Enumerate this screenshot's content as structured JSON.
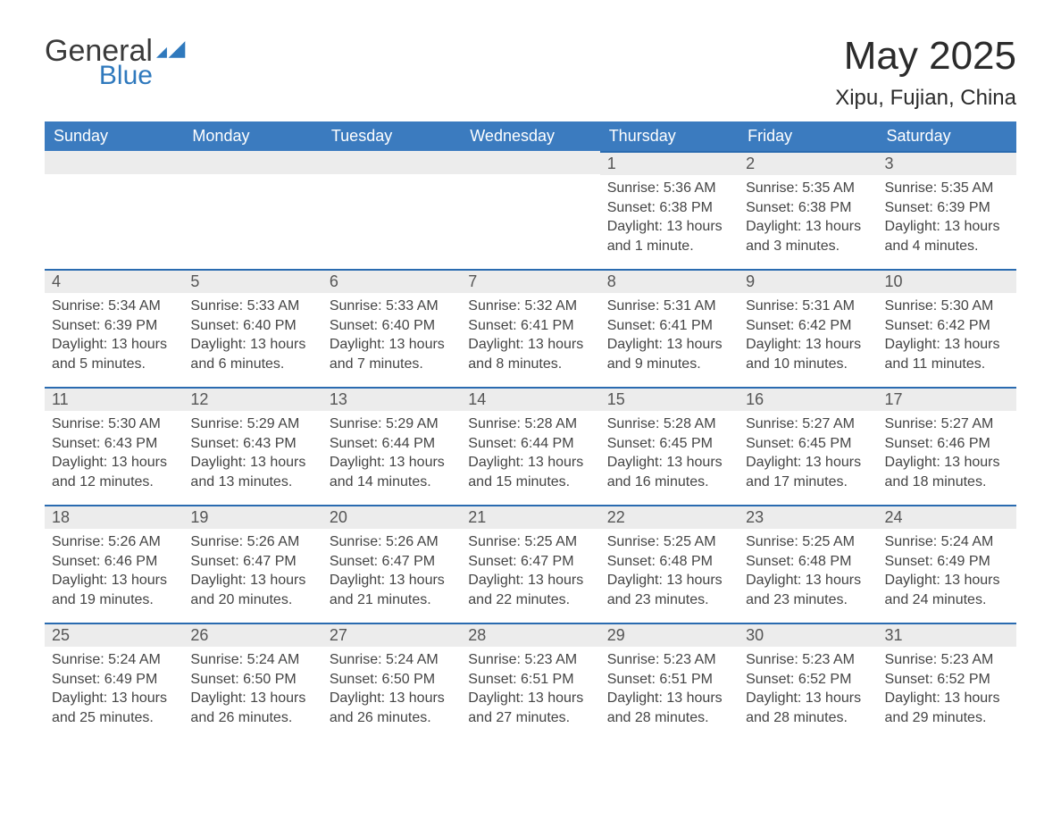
{
  "logo": {
    "word1": "General",
    "word2": "Blue"
  },
  "title": "May 2025",
  "location": "Xipu, Fujian, China",
  "colors": {
    "header_blue": "#3b7bbf",
    "accent_blue": "#2a6bb0",
    "logo_blue": "#2f79bd",
    "daynum_bg": "#ececec",
    "text": "#333333"
  },
  "columns": [
    "Sunday",
    "Monday",
    "Tuesday",
    "Wednesday",
    "Thursday",
    "Friday",
    "Saturday"
  ],
  "weeks": [
    [
      null,
      null,
      null,
      null,
      {
        "n": "1",
        "sunrise": "5:36 AM",
        "sunset": "6:38 PM",
        "daylight": "13 hours and 1 minute."
      },
      {
        "n": "2",
        "sunrise": "5:35 AM",
        "sunset": "6:38 PM",
        "daylight": "13 hours and 3 minutes."
      },
      {
        "n": "3",
        "sunrise": "5:35 AM",
        "sunset": "6:39 PM",
        "daylight": "13 hours and 4 minutes."
      }
    ],
    [
      {
        "n": "4",
        "sunrise": "5:34 AM",
        "sunset": "6:39 PM",
        "daylight": "13 hours and 5 minutes."
      },
      {
        "n": "5",
        "sunrise": "5:33 AM",
        "sunset": "6:40 PM",
        "daylight": "13 hours and 6 minutes."
      },
      {
        "n": "6",
        "sunrise": "5:33 AM",
        "sunset": "6:40 PM",
        "daylight": "13 hours and 7 minutes."
      },
      {
        "n": "7",
        "sunrise": "5:32 AM",
        "sunset": "6:41 PM",
        "daylight": "13 hours and 8 minutes."
      },
      {
        "n": "8",
        "sunrise": "5:31 AM",
        "sunset": "6:41 PM",
        "daylight": "13 hours and 9 minutes."
      },
      {
        "n": "9",
        "sunrise": "5:31 AM",
        "sunset": "6:42 PM",
        "daylight": "13 hours and 10 minutes."
      },
      {
        "n": "10",
        "sunrise": "5:30 AM",
        "sunset": "6:42 PM",
        "daylight": "13 hours and 11 minutes."
      }
    ],
    [
      {
        "n": "11",
        "sunrise": "5:30 AM",
        "sunset": "6:43 PM",
        "daylight": "13 hours and 12 minutes."
      },
      {
        "n": "12",
        "sunrise": "5:29 AM",
        "sunset": "6:43 PM",
        "daylight": "13 hours and 13 minutes."
      },
      {
        "n": "13",
        "sunrise": "5:29 AM",
        "sunset": "6:44 PM",
        "daylight": "13 hours and 14 minutes."
      },
      {
        "n": "14",
        "sunrise": "5:28 AM",
        "sunset": "6:44 PM",
        "daylight": "13 hours and 15 minutes."
      },
      {
        "n": "15",
        "sunrise": "5:28 AM",
        "sunset": "6:45 PM",
        "daylight": "13 hours and 16 minutes."
      },
      {
        "n": "16",
        "sunrise": "5:27 AM",
        "sunset": "6:45 PM",
        "daylight": "13 hours and 17 minutes."
      },
      {
        "n": "17",
        "sunrise": "5:27 AM",
        "sunset": "6:46 PM",
        "daylight": "13 hours and 18 minutes."
      }
    ],
    [
      {
        "n": "18",
        "sunrise": "5:26 AM",
        "sunset": "6:46 PM",
        "daylight": "13 hours and 19 minutes."
      },
      {
        "n": "19",
        "sunrise": "5:26 AM",
        "sunset": "6:47 PM",
        "daylight": "13 hours and 20 minutes."
      },
      {
        "n": "20",
        "sunrise": "5:26 AM",
        "sunset": "6:47 PM",
        "daylight": "13 hours and 21 minutes."
      },
      {
        "n": "21",
        "sunrise": "5:25 AM",
        "sunset": "6:47 PM",
        "daylight": "13 hours and 22 minutes."
      },
      {
        "n": "22",
        "sunrise": "5:25 AM",
        "sunset": "6:48 PM",
        "daylight": "13 hours and 23 minutes."
      },
      {
        "n": "23",
        "sunrise": "5:25 AM",
        "sunset": "6:48 PM",
        "daylight": "13 hours and 23 minutes."
      },
      {
        "n": "24",
        "sunrise": "5:24 AM",
        "sunset": "6:49 PM",
        "daylight": "13 hours and 24 minutes."
      }
    ],
    [
      {
        "n": "25",
        "sunrise": "5:24 AM",
        "sunset": "6:49 PM",
        "daylight": "13 hours and 25 minutes."
      },
      {
        "n": "26",
        "sunrise": "5:24 AM",
        "sunset": "6:50 PM",
        "daylight": "13 hours and 26 minutes."
      },
      {
        "n": "27",
        "sunrise": "5:24 AM",
        "sunset": "6:50 PM",
        "daylight": "13 hours and 26 minutes."
      },
      {
        "n": "28",
        "sunrise": "5:23 AM",
        "sunset": "6:51 PM",
        "daylight": "13 hours and 27 minutes."
      },
      {
        "n": "29",
        "sunrise": "5:23 AM",
        "sunset": "6:51 PM",
        "daylight": "13 hours and 28 minutes."
      },
      {
        "n": "30",
        "sunrise": "5:23 AM",
        "sunset": "6:52 PM",
        "daylight": "13 hours and 28 minutes."
      },
      {
        "n": "31",
        "sunrise": "5:23 AM",
        "sunset": "6:52 PM",
        "daylight": "13 hours and 29 minutes."
      }
    ]
  ],
  "labels": {
    "sunrise": "Sunrise:",
    "sunset": "Sunset:",
    "daylight": "Daylight:"
  }
}
